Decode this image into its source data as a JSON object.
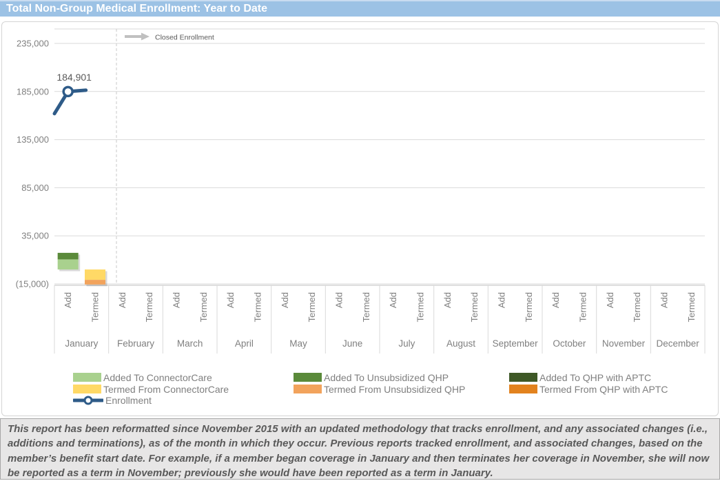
{
  "title_bar": {
    "title": "Total Non-Group Medical Enrollment: Year to Date",
    "bg": "#9CC2E5"
  },
  "chart_data": {
    "type": "bar",
    "title": "Total Non-Group Medical Enrollment: Year to Date",
    "annotation": {
      "label": "Closed Enrollment"
    },
    "y_axis": {
      "min": -15000,
      "max": 250000,
      "ticks": [
        {
          "value": -15000,
          "label": "(15,000)"
        },
        {
          "value": 35000,
          "label": "35,000"
        },
        {
          "value": 85000,
          "label": "85,000"
        },
        {
          "value": 135000,
          "label": "135,000"
        },
        {
          "value": 185000,
          "label": "185,000"
        },
        {
          "value": 235000,
          "label": "235,000"
        }
      ]
    },
    "x_axis": {
      "months": [
        "January",
        "February",
        "March",
        "April",
        "May",
        "June",
        "July",
        "August",
        "September",
        "October",
        "November",
        "December"
      ],
      "sub_categories": [
        "Add",
        "Termed"
      ]
    },
    "series": [
      {
        "name": "Added To ConnectorCare",
        "type": "add",
        "color": "#A9D18E",
        "values": [
          10500,
          0,
          0,
          0,
          0,
          0,
          0,
          0,
          0,
          0,
          0,
          0
        ]
      },
      {
        "name": "Added To Unsubsidized QHP",
        "type": "add",
        "color": "#5A8A3A",
        "values": [
          6800,
          0,
          0,
          0,
          0,
          0,
          0,
          0,
          0,
          0,
          0,
          0
        ]
      },
      {
        "name": "Added To QHP with APTC",
        "type": "add",
        "color": "#3E5826",
        "values": [
          0,
          0,
          0,
          0,
          0,
          0,
          0,
          0,
          0,
          0,
          0,
          0
        ]
      },
      {
        "name": "Termed From ConnectorCare",
        "type": "termed",
        "color": "#FFD966",
        "values": [
          -10800,
          0,
          0,
          0,
          0,
          0,
          0,
          0,
          0,
          0,
          0,
          0
        ]
      },
      {
        "name": "Termed From Unsubsidized QHP",
        "type": "termed",
        "color": "#F2A35C",
        "values": [
          -4800,
          0,
          0,
          0,
          0,
          0,
          0,
          0,
          0,
          0,
          0,
          0
        ]
      },
      {
        "name": "Termed From QHP with APTC",
        "type": "termed",
        "color": "#E2821E",
        "values": [
          0,
          0,
          0,
          0,
          0,
          0,
          0,
          0,
          0,
          0,
          0,
          0
        ]
      }
    ],
    "enrollment_series": {
      "name": "Enrollment",
      "color": "#2E5B88",
      "label": "184,901",
      "values": [
        184901,
        null,
        null,
        null,
        null,
        null,
        null,
        null,
        null,
        null,
        null,
        null
      ]
    },
    "layout": {
      "grid": true,
      "legend_position": "bottom"
    }
  },
  "legend": {
    "items": [
      {
        "label": "Added To ConnectorCare",
        "color": "#A9D18E",
        "col": 0,
        "row": 0,
        "marker": "swatch"
      },
      {
        "label": "Added To Unsubsidized QHP",
        "color": "#5A8A3A",
        "col": 1,
        "row": 0,
        "marker": "swatch"
      },
      {
        "label": "Added To QHP with APTC",
        "color": "#3E5826",
        "col": 2,
        "row": 0,
        "marker": "swatch"
      },
      {
        "label": "Termed From ConnectorCare",
        "color": "#FFD966",
        "col": 0,
        "row": 1,
        "marker": "swatch"
      },
      {
        "label": "Termed From Unsubsidized QHP",
        "color": "#F2A35C",
        "col": 1,
        "row": 1,
        "marker": "swatch"
      },
      {
        "label": "Termed From QHP with APTC",
        "color": "#E2821E",
        "col": 2,
        "row": 1,
        "marker": "swatch"
      },
      {
        "label": "Enrollment",
        "color": "#2E5B88",
        "col": 0,
        "row": 2,
        "marker": "line"
      }
    ]
  },
  "footer": {
    "text": "This report has been reformatted since November 2015 with an updated methodology that tracks enrollment, and any associated changes (i.e., additions and terminations), as of the month in which they occur.  Previous reports tracked enrollment, and associated changes, based on the member’s benefit start date.  For example, if a member began coverage in January and then terminates her coverage in November, she will now be reported as a term in November; previously she would have been reported as a term in January."
  }
}
